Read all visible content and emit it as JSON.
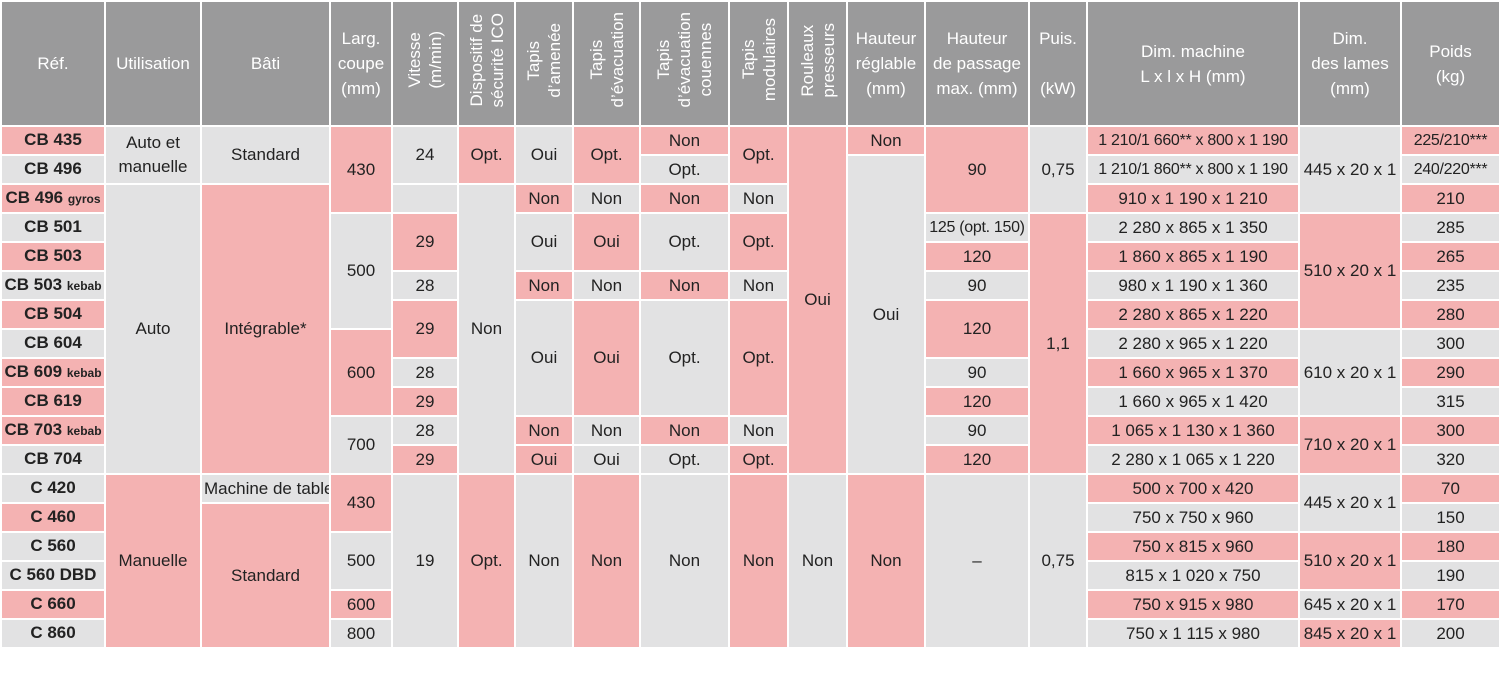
{
  "header": {
    "ref": "Réf.",
    "utilisation": "Utilisation",
    "bati": "Bâti",
    "larg_l1": "Larg.",
    "larg_l2": "coupe",
    "larg_l3": "(mm)",
    "vitesse_l1": "Vitesse",
    "vitesse_l2": "(m/min)",
    "dispositif_l1": "Dispositif de",
    "dispositif_l2": "sécurité ICO",
    "tapis_amenee_l1": "Tapis",
    "tapis_amenee_l2": "d’amenée",
    "tapis_evac_l1": "Tapis",
    "tapis_evac_l2": "d’évacuation",
    "tapis_couennes_l1": "Tapis",
    "tapis_couennes_l2": "d’évacuation",
    "tapis_couennes_l3": "couennes",
    "tapis_modulaires_l1": "Tapis",
    "tapis_modulaires_l2": "modulaires",
    "rouleaux_l1": "Rouleaux",
    "rouleaux_l2": "presseurs",
    "hauteur_reg_l1": "Hauteur",
    "hauteur_reg_l2": "réglable",
    "hauteur_reg_l3": "(mm)",
    "hauteur_pass_l1": "Hauteur",
    "hauteur_pass_l2": "de passage",
    "hauteur_pass_l3": "max. (mm)",
    "puis_l1": "Puis.",
    "puis_l2": "(kW)",
    "dim_machine_l1": "Dim. machine",
    "dim_machine_l2": "L x l x H (mm)",
    "dim_lames_l1": "Dim.",
    "dim_lames_l2": "des lames",
    "dim_lames_l3": "(mm)",
    "poids_l1": "Poids",
    "poids_l2": "(kg)"
  },
  "refs": [
    {
      "main": "CB 435",
      "suffix": ""
    },
    {
      "main": "CB 496",
      "suffix": ""
    },
    {
      "main": "CB 496",
      "suffix": "gyros"
    },
    {
      "main": "CB 501",
      "suffix": ""
    },
    {
      "main": "CB 503",
      "suffix": ""
    },
    {
      "main": "CB 503",
      "suffix": "kebab"
    },
    {
      "main": "CB 504",
      "suffix": ""
    },
    {
      "main": "CB 604",
      "suffix": ""
    },
    {
      "main": "CB 609",
      "suffix": "kebab"
    },
    {
      "main": "CB 619",
      "suffix": ""
    },
    {
      "main": "CB 703",
      "suffix": "kebab"
    },
    {
      "main": "CB 704",
      "suffix": ""
    },
    {
      "main": "C 420",
      "suffix": ""
    },
    {
      "main": "C 460",
      "suffix": ""
    },
    {
      "main": "C 560",
      "suffix": ""
    },
    {
      "main": "C 560 DBD",
      "suffix": ""
    },
    {
      "main": "C 660",
      "suffix": ""
    },
    {
      "main": "C 860",
      "suffix": ""
    }
  ],
  "cells": {
    "util_auto_manuelle": "Auto et manuelle",
    "util_auto": "Auto",
    "util_manuelle": "Manuelle",
    "bati_standard": "Standard",
    "bati_integrable": "Intégrable*",
    "bati_machine_table": "Machine de table",
    "larg_430": "430",
    "larg_500": "500",
    "larg_600": "600",
    "larg_700": "700",
    "larg_c430": "430",
    "larg_c500": "500",
    "larg_c600": "600",
    "larg_c800": "800",
    "vit_24": "24",
    "vit_r4": "29",
    "vit_r6": "28",
    "vit_r7": "29",
    "vit_r9": "28",
    "vit_r10": "29",
    "vit_r11": "28",
    "vit_r12": "29",
    "vit_19": "19",
    "ico_opt": "Opt.",
    "ico_non": "Non",
    "ico_opt2": "Opt.",
    "amenee_oui1": "Oui",
    "amenee_r3": "Non",
    "amenee_r4": "Oui",
    "amenee_r6": "Non",
    "amenee_r7": "Oui",
    "amenee_r11": "Non",
    "amenee_r12": "Oui",
    "amenee_c": "Non",
    "evac_opt": "Opt.",
    "evac_r3": "Non",
    "evac_r4": "Oui",
    "evac_r6": "Non",
    "evac_r7": "Oui",
    "evac_r11": "Non",
    "evac_r12": "Oui",
    "evac_c": "Non",
    "cou_r1": "Non",
    "cou_r2": "Opt.",
    "cou_r3": "Non",
    "cou_r4": "Opt.",
    "cou_r6": "Non",
    "cou_r7": "Opt.",
    "cou_r11": "Non",
    "cou_r12": "Opt.",
    "cou_c": "Non",
    "mod_opt": "Opt.",
    "mod_r3": "Non",
    "mod_r4": "Opt.",
    "mod_r6": "Non",
    "mod_r7": "Opt.",
    "mod_r11": "Non",
    "mod_r12": "Opt.",
    "mod_c": "Non",
    "rouleaux_oui": "Oui",
    "rouleaux_non": "Non",
    "hreg_r1": "Non",
    "hreg_oui": "Oui",
    "hreg_c": "Non",
    "hp_90a": "90",
    "hp_r4": "125 (opt. 150)",
    "hp_r5": "120",
    "hp_r6": "90",
    "hp_r7": "120",
    "hp_r9": "90",
    "hp_r10": "120",
    "hp_r11": "90",
    "hp_r12": "120",
    "hp_dash": "–",
    "puis_075": "0,75",
    "puis_11": "1,1",
    "puis_075c": "0,75",
    "dim": [
      "1 210/1 660** x 800 x 1 190",
      "1 210/1 860** x 800 x 1 190",
      "910 x 1 190 x 1 210",
      "2 280 x 865 x 1 350",
      "1 860 x 865 x 1 190",
      "980 x 1 190 x 1 360",
      "2 280 x 865 x 1 220",
      "2 280 x 965 x 1 220",
      "1 660 x 965 x 1 370",
      "1 660 x 965 x 1 420",
      "1 065 x 1 130 x 1 360",
      "2 280 x 1 065 x 1 220",
      "500 x 700 x 420",
      "750 x 750 x 960",
      "750 x 815 x 960",
      "815 x 1 020 x 750",
      "750 x 915 x 980",
      "750 x 1 115 x 980"
    ],
    "lames_445a": "445 x 20 x 1",
    "lames_510a": "510 x 20 x 1",
    "lames_610": "610 x 20 x 1",
    "lames_710": "710 x 20 x 1",
    "lames_445b": "445 x 20 x 1",
    "lames_510b": "510 x 20 x 1",
    "lames_645": "645 x 20 x 1",
    "lames_845": "845 x 20 x 1",
    "poids": [
      "225/210***",
      "240/220***",
      "210",
      "285",
      "265",
      "235",
      "280",
      "300",
      "290",
      "315",
      "300",
      "320",
      "70",
      "150",
      "180",
      "190",
      "170",
      "200"
    ]
  }
}
